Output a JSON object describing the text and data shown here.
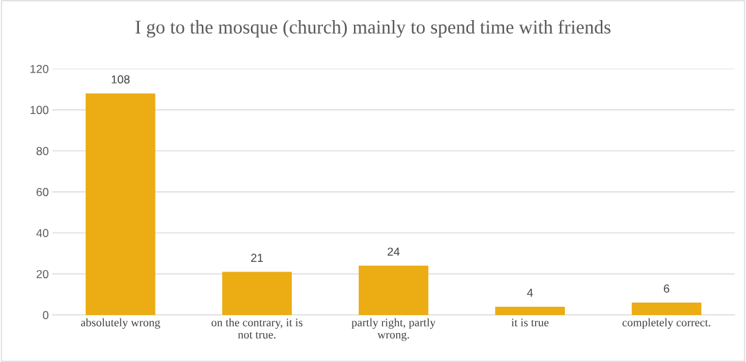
{
  "chart_data": {
    "type": "bar",
    "title": "I go to the mosque (church) mainly to spend time with friends",
    "categories": [
      "absolutely wrong",
      "on the contrary, it is\nnot true.",
      "partly right, partly\nwrong.",
      "it is true",
      "completely correct."
    ],
    "values": [
      108,
      21,
      24,
      4,
      6
    ],
    "color": "#ebac14",
    "ylim": [
      0,
      120
    ],
    "yticks": [
      0,
      20,
      40,
      60,
      80,
      100,
      120
    ],
    "grid": "y",
    "data_labels": true,
    "legend": false
  }
}
